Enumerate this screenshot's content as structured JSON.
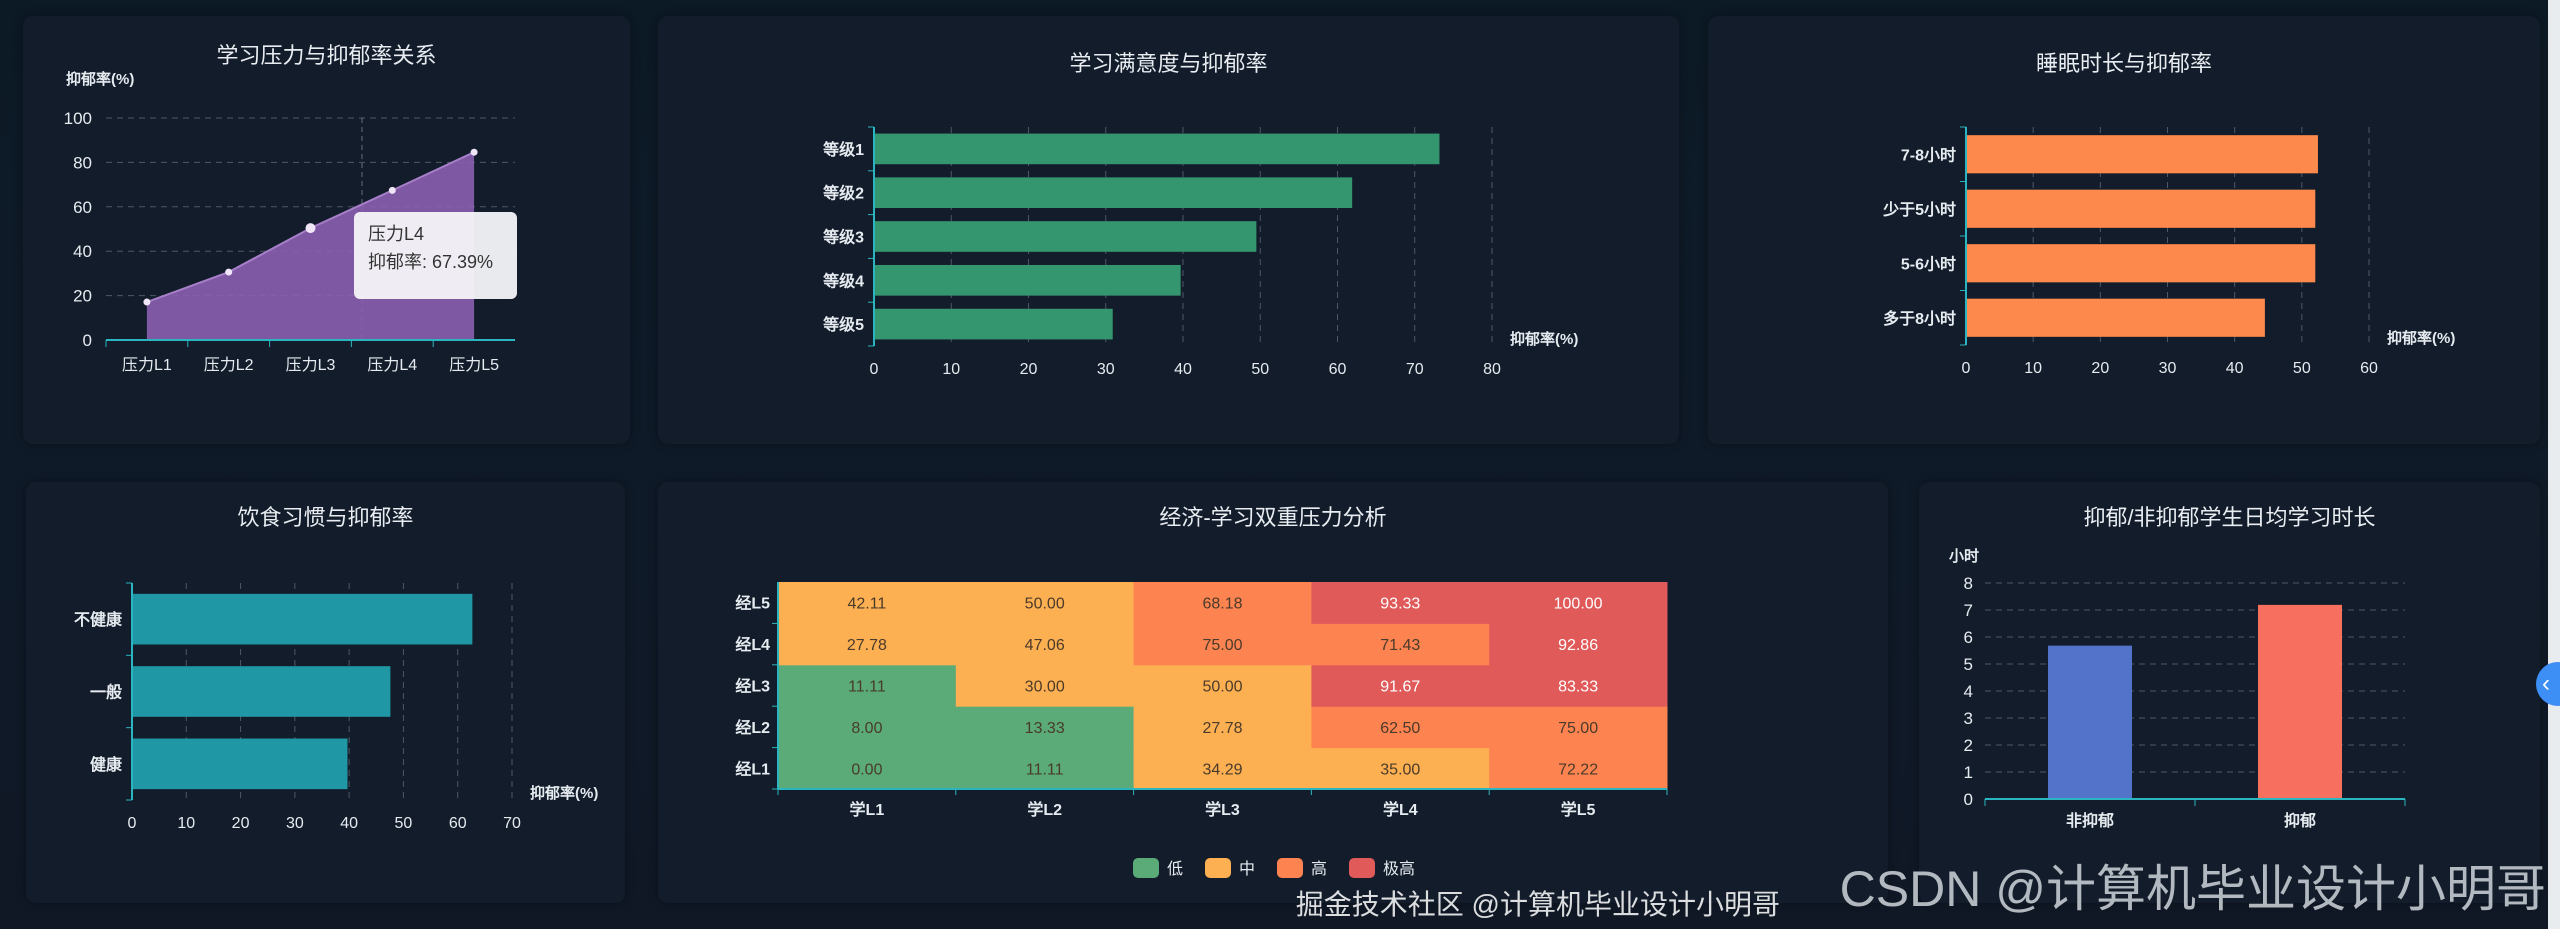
{
  "colors": {
    "line": "#8c5fb0",
    "satisfaction": "#34966f",
    "sleep": "#fd8a4c",
    "diet": "#1f97a5",
    "non_depressed": "#5273c9",
    "depressed": "#f7705f",
    "axis": "#2bb5c0"
  },
  "tooltip": {
    "title": "压力L4",
    "label": "抑郁率: 67.39%"
  },
  "watermark": {
    "main": "CSDN @计算机毕业设计小明哥",
    "secondary": "掘金技术社区 @计算机毕业设计小明哥"
  },
  "side_button": {
    "icon": "chevron-left-icon",
    "glyph": "‹"
  },
  "chart_data": [
    {
      "id": "stress",
      "type": "area",
      "title": "学习压力与抑郁率关系",
      "ylabel": "抑郁率(%)",
      "categories": [
        "压力L1",
        "压力L2",
        "压力L3",
        "压力L4",
        "压力L5"
      ],
      "values": [
        17.1,
        30.6,
        50.4,
        67.39,
        84.6
      ],
      "ylim": [
        0,
        100
      ],
      "yticks": [
        0,
        20,
        40,
        60,
        80,
        100
      ],
      "grid": true
    },
    {
      "id": "satisfaction",
      "type": "bar",
      "orientation": "horizontal",
      "title": "学习满意度与抑郁率",
      "xlabel": "抑郁率(%)",
      "categories": [
        "等级1",
        "等级2",
        "等级3",
        "等级4",
        "等级5"
      ],
      "values": [
        73.2,
        61.9,
        49.5,
        39.7,
        30.9
      ],
      "xlim": [
        0,
        80
      ],
      "xticks": [
        0,
        10,
        20,
        30,
        40,
        50,
        60,
        70,
        80
      ],
      "grid": true
    },
    {
      "id": "sleep",
      "type": "bar",
      "orientation": "horizontal",
      "title": "睡眠时长与抑郁率",
      "xlabel": "抑郁率(%)",
      "categories": [
        "7-8小时",
        "少于5小时",
        "5-6小时",
        "多于8小时"
      ],
      "values": [
        52.4,
        52.0,
        52.0,
        44.5
      ],
      "xlim": [
        0,
        60
      ],
      "xticks": [
        0,
        10,
        20,
        30,
        40,
        50,
        60
      ],
      "grid": true
    },
    {
      "id": "diet",
      "type": "bar",
      "orientation": "horizontal",
      "title": "饮食习惯与抑郁率",
      "xlabel": "抑郁率(%)",
      "categories": [
        "不健康",
        "一般",
        "健康"
      ],
      "values": [
        62.7,
        47.6,
        39.7
      ],
      "xlim": [
        0,
        70
      ],
      "xticks": [
        0,
        10,
        20,
        30,
        40,
        50,
        60,
        70
      ],
      "grid": true
    },
    {
      "id": "heatmap",
      "type": "heatmap",
      "title": "经济-学习双重压力分析",
      "x_categories": [
        "学L1",
        "学L2",
        "学L3",
        "学L4",
        "学L5"
      ],
      "y_categories": [
        "经L1",
        "经L2",
        "经L3",
        "经L4",
        "经L5"
      ],
      "values": [
        [
          "0.00",
          "11.11",
          "34.29",
          "35.00",
          "72.22"
        ],
        [
          "8.00",
          "13.33",
          "27.78",
          "62.50",
          "75.00"
        ],
        [
          "11.11",
          "30.00",
          "50.00",
          "91.67",
          "83.33"
        ],
        [
          "27.78",
          "47.06",
          "75.00",
          "71.43",
          "92.86"
        ],
        [
          "42.11",
          "50.00",
          "68.18",
          "93.33",
          "100.00"
        ]
      ],
      "legend": [
        {
          "label": "低",
          "color": "#5aab78"
        },
        {
          "label": "中",
          "color": "#fdb052"
        },
        {
          "label": "高",
          "color": "#fd8451"
        },
        {
          "label": "极高",
          "color": "#e05a5a"
        }
      ],
      "legend_position": "bottom"
    },
    {
      "id": "hours",
      "type": "bar",
      "orientation": "vertical",
      "title": "抑郁/非抑郁学生日均学习时长",
      "ylabel": "小时",
      "categories": [
        "非抑郁",
        "抑郁"
      ],
      "values": [
        5.68,
        7.19
      ],
      "ylim": [
        0,
        8
      ],
      "yticks": [
        0,
        1,
        2,
        3,
        4,
        5,
        6,
        7,
        8
      ],
      "grid": true
    }
  ]
}
